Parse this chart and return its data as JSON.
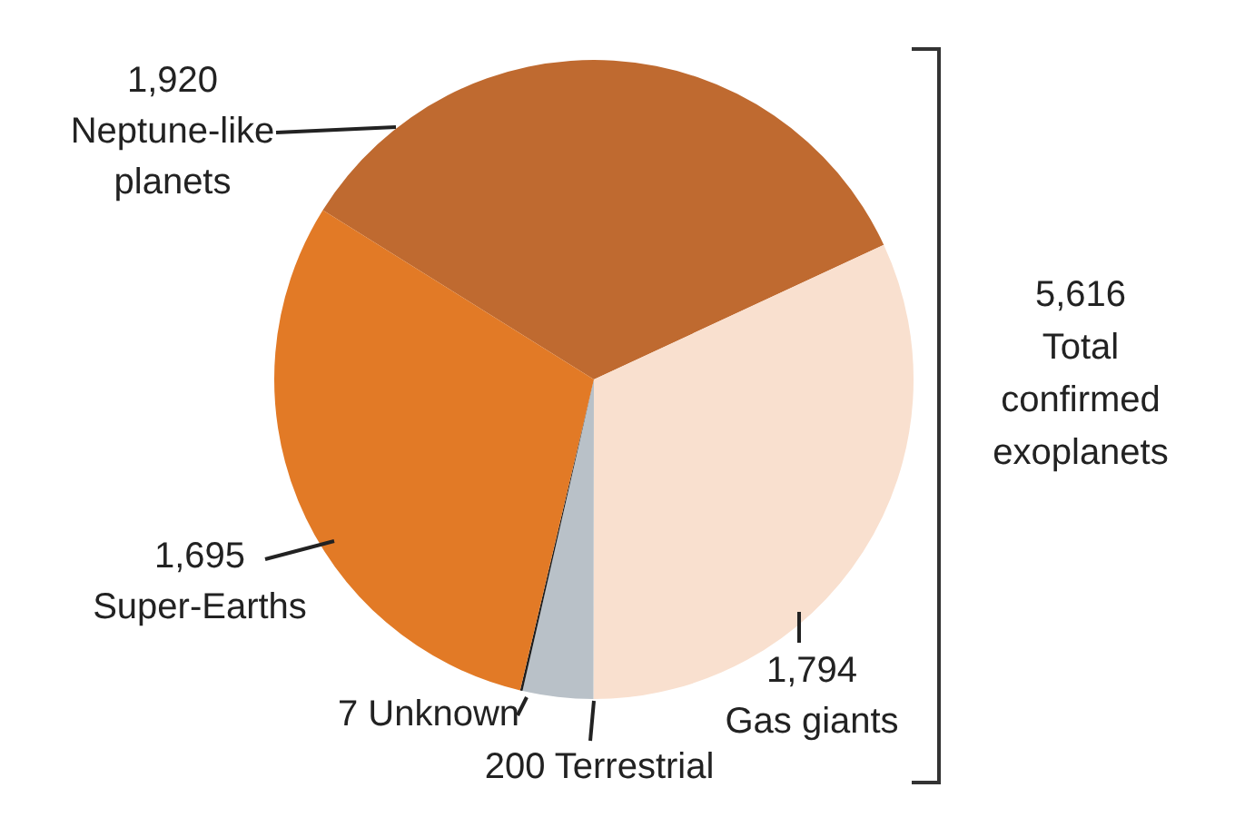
{
  "chart_data": {
    "type": "pie",
    "categories": [
      "Neptune-like planets",
      "Gas giants",
      "Terrestrial",
      "Unknown",
      "Super-Earths"
    ],
    "values": [
      1920,
      1794,
      200,
      7,
      1695
    ],
    "value_labels": [
      "1,920",
      "1,794",
      "200",
      "7",
      "1,695"
    ],
    "colors": [
      "#bf6a30",
      "#f9e0cf",
      "#b9c1c8",
      "#1e1e1e",
      "#e27a26"
    ],
    "annotations": [
      "5,616 Total confirmed exoplanets"
    ],
    "legend": false
  }
}
